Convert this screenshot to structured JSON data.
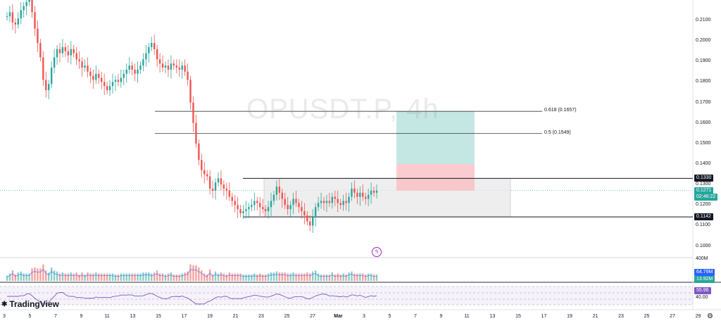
{
  "watermark": "OPUSDT.P, 4h",
  "logo": {
    "mark": "✱",
    "text": "TradingView"
  },
  "icons": {
    "alert": "lightning-icon",
    "settings": "gear-icon"
  },
  "colors": {
    "up": "#26a69a",
    "down": "#ef5350",
    "rsi": "#7e57c2",
    "target": "#b2dfdb",
    "stop": "#f8bbbf",
    "range": "#e8e8e8"
  },
  "chart_data": {
    "type": "candlestick",
    "symbol": "OPUSDT.P",
    "timeframe": "4h",
    "y_ticks": [
      "0.2100",
      "0.2000",
      "0.1900",
      "0.1800",
      "0.1700",
      "0.1600",
      "0.1500",
      "0.1400",
      "0.1300",
      "0.1200",
      "0.1100",
      "0.1000"
    ],
    "x_ticks": [
      "3",
      "5",
      "7",
      "9",
      "11",
      "13",
      "15",
      "17",
      "19",
      "21",
      "23",
      "25",
      "27",
      "Mar",
      "3",
      "5",
      "7",
      "9",
      "11",
      "13",
      "15",
      "17",
      "19",
      "21",
      "23",
      "25",
      "27",
      "29"
    ],
    "last_price": "0.1271",
    "countdown": "02:46:22",
    "levels": [
      {
        "label": "0.1330",
        "value": 0.133
      },
      {
        "label": "0.1142",
        "value": 0.1142
      }
    ],
    "fib_levels": [
      {
        "label": "0.618 (0.1657)",
        "value": 0.1657
      },
      {
        "label": "0.5 (0.1549)",
        "value": 0.1549
      }
    ],
    "position": {
      "target": 0.1657,
      "stop_top": 0.14,
      "entry": 0.127
    },
    "volume": {
      "label_top": "400M",
      "ma_value": "64.79M",
      "value": "13.92M"
    },
    "rsi": {
      "value": "55.96",
      "level_label": "40.00",
      "levels": [
        70,
        60,
        40,
        30
      ]
    },
    "prices": [
      0.212,
      0.214,
      0.209,
      0.208,
      0.211,
      0.215,
      0.217,
      0.219,
      0.221,
      0.214,
      0.206,
      0.199,
      0.192,
      0.181,
      0.176,
      0.179,
      0.187,
      0.192,
      0.196,
      0.194,
      0.197,
      0.195,
      0.193,
      0.196,
      0.194,
      0.191,
      0.19,
      0.187,
      0.188,
      0.185,
      0.183,
      0.181,
      0.184,
      0.182,
      0.18,
      0.178,
      0.176,
      0.178,
      0.18,
      0.181,
      0.18,
      0.182,
      0.184,
      0.186,
      0.188,
      0.186,
      0.184,
      0.186,
      0.188,
      0.191,
      0.194,
      0.197,
      0.199,
      0.196,
      0.191,
      0.189,
      0.187,
      0.188,
      0.186,
      0.189,
      0.188,
      0.187,
      0.186,
      0.188,
      0.185,
      0.181,
      0.17,
      0.16,
      0.15,
      0.142,
      0.137,
      0.135,
      0.134,
      0.128,
      0.127,
      0.131,
      0.133,
      0.13,
      0.128,
      0.127,
      0.124,
      0.122,
      0.12,
      0.118,
      0.116,
      0.117,
      0.118,
      0.119,
      0.12,
      0.122,
      0.121,
      0.119,
      0.118,
      0.117,
      0.119,
      0.122,
      0.125,
      0.129,
      0.126,
      0.123,
      0.12,
      0.118,
      0.12,
      0.123,
      0.121,
      0.119,
      0.117,
      0.115,
      0.112,
      0.11,
      0.114,
      0.119,
      0.121,
      0.122,
      0.121,
      0.122,
      0.121,
      0.124,
      0.123,
      0.121,
      0.12,
      0.122,
      0.121,
      0.124,
      0.128,
      0.126,
      0.124,
      0.126,
      0.124,
      0.123,
      0.125,
      0.127,
      0.126,
      0.127
    ]
  }
}
